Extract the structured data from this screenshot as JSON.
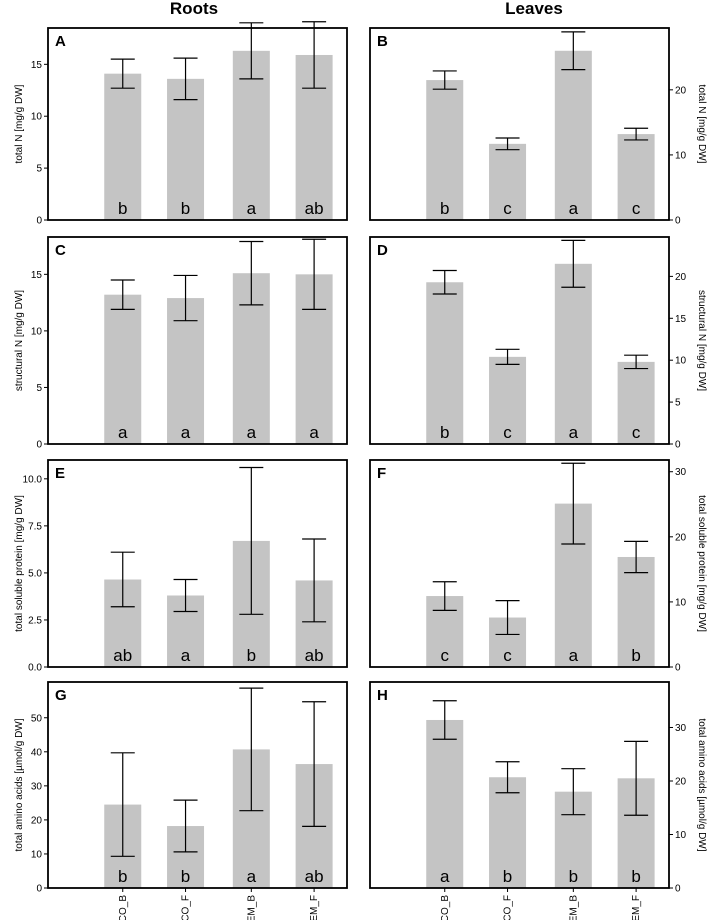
{
  "column_titles": [
    "Roots",
    "Leaves"
  ],
  "chart_data": [
    {
      "panel": "A",
      "type": "bar",
      "title": "Roots",
      "ylabel": "total N [mg/g DW]",
      "axis_side": "left",
      "categories": [
        "CO_B",
        "CO_F",
        "EM_B",
        "EM_F"
      ],
      "values": [
        14.1,
        13.6,
        16.3,
        15.9
      ],
      "errors": [
        1.4,
        2.0,
        2.7,
        3.2
      ],
      "letters": [
        "b",
        "b",
        "a",
        "ab"
      ],
      "ylim": [
        0,
        18.5
      ],
      "ticks": [
        0,
        5,
        10,
        15
      ],
      "tick_labels": [
        "0",
        "5",
        "10",
        "15"
      ]
    },
    {
      "panel": "B",
      "type": "bar",
      "title": "Leaves",
      "ylabel": "total N [mg/g DW]",
      "axis_side": "right",
      "categories": [
        "CO_B",
        "CO_F",
        "EM_B",
        "EM_F"
      ],
      "values": [
        21.5,
        11.7,
        26.0,
        13.2
      ],
      "errors": [
        1.4,
        0.9,
        2.9,
        0.9
      ],
      "letters": [
        "b",
        "c",
        "a",
        "c"
      ],
      "ylim": [
        0,
        29.5
      ],
      "ticks": [
        0,
        10,
        20
      ],
      "tick_labels": [
        "0",
        "10",
        "20"
      ]
    },
    {
      "panel": "C",
      "type": "bar",
      "title": "Roots",
      "ylabel": "structural N [mg/g DW]",
      "axis_side": "left",
      "categories": [
        "CO_B",
        "CO_F",
        "EM_B",
        "EM_F"
      ],
      "values": [
        13.2,
        12.9,
        15.1,
        15.0
      ],
      "errors": [
        1.3,
        2.0,
        2.8,
        3.1
      ],
      "letters": [
        "a",
        "a",
        "a",
        "a"
      ],
      "ylim": [
        0,
        18.3
      ],
      "ticks": [
        0,
        5,
        10,
        15
      ],
      "tick_labels": [
        "0",
        "5",
        "10",
        "15"
      ]
    },
    {
      "panel": "D",
      "type": "bar",
      "title": "Leaves",
      "ylabel": "structural N [mg/g DW]",
      "axis_side": "right",
      "categories": [
        "CO_B",
        "CO_F",
        "EM_B",
        "EM_F"
      ],
      "values": [
        19.3,
        10.4,
        21.5,
        9.8
      ],
      "errors": [
        1.4,
        0.9,
        2.8,
        0.8
      ],
      "letters": [
        "b",
        "c",
        "a",
        "c"
      ],
      "ylim": [
        0,
        24.7
      ],
      "ticks": [
        0,
        5,
        10,
        15,
        20
      ],
      "tick_labels": [
        "0",
        "5",
        "10",
        "15",
        "20"
      ]
    },
    {
      "panel": "E",
      "type": "bar",
      "title": "Roots",
      "ylabel": "total soluble protein [mg/g DW]",
      "axis_side": "left",
      "categories": [
        "CO_B",
        "CO_F",
        "EM_B",
        "EM_F"
      ],
      "values": [
        4.65,
        3.8,
        6.7,
        4.6
      ],
      "errors": [
        1.45,
        0.85,
        3.9,
        2.2
      ],
      "letters": [
        "ab",
        "a",
        "b",
        "ab"
      ],
      "ylim": [
        0,
        11.0
      ],
      "ticks": [
        0,
        2.5,
        5,
        7.5,
        10
      ],
      "tick_labels": [
        "0.0",
        "2.5",
        "5.0",
        "7.5",
        "10.0"
      ]
    },
    {
      "panel": "F",
      "type": "bar",
      "title": "Leaves",
      "ylabel": "total soluble protein [mg/g DW]",
      "axis_side": "right",
      "categories": [
        "CO_B",
        "CO_F",
        "EM_B",
        "EM_F"
      ],
      "values": [
        10.9,
        7.6,
        25.1,
        16.9
      ],
      "errors": [
        2.2,
        2.6,
        6.2,
        2.4
      ],
      "letters": [
        "c",
        "c",
        "a",
        "b"
      ],
      "ylim": [
        0,
        31.8
      ],
      "ticks": [
        0,
        10,
        20,
        30
      ],
      "tick_labels": [
        "0",
        "10",
        "20",
        "30"
      ]
    },
    {
      "panel": "G",
      "type": "bar",
      "title": "Roots",
      "ylabel": "total amino acids [µmol/g DW]",
      "axis_side": "left",
      "categories": [
        "CO_B",
        "CO_F",
        "EM_B",
        "EM_F"
      ],
      "values": [
        24.5,
        18.2,
        40.7,
        36.4
      ],
      "errors": [
        15.2,
        7.6,
        18.0,
        18.3
      ],
      "letters": [
        "b",
        "b",
        "a",
        "ab"
      ],
      "ylim": [
        0,
        60.5
      ],
      "ticks": [
        0,
        10,
        20,
        30,
        40,
        50
      ],
      "tick_labels": [
        "0",
        "10",
        "20",
        "30",
        "40",
        "50"
      ]
    },
    {
      "panel": "H",
      "type": "bar",
      "title": "Leaves",
      "ylabel": "total amino acids [µmol/g DW]",
      "axis_side": "right",
      "categories": [
        "CO_B",
        "CO_F",
        "EM_B",
        "EM_F"
      ],
      "values": [
        31.4,
        20.7,
        18.0,
        20.5
      ],
      "errors": [
        3.6,
        2.9,
        4.3,
        6.9
      ],
      "letters": [
        "a",
        "b",
        "b",
        "b"
      ],
      "ylim": [
        0,
        38.5
      ],
      "ticks": [
        0,
        10,
        20,
        30
      ],
      "tick_labels": [
        "0",
        "10",
        "20",
        "30"
      ]
    }
  ]
}
